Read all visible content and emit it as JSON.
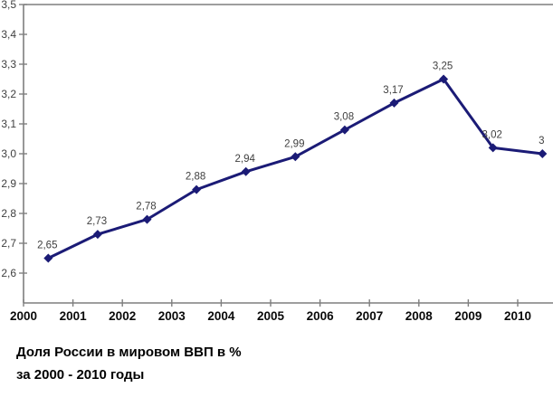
{
  "chart_data": {
    "type": "line",
    "title": "Доля России в мировом ВВП в % за 2000 - 2010 годы",
    "caption_lines": [
      "Доля России в мировом ВВП в %",
      "за 2000 - 2010 годы"
    ],
    "categories": [
      "2000",
      "2001",
      "2002",
      "2003",
      "2004",
      "2005",
      "2006",
      "2007",
      "2008",
      "2009",
      "2010"
    ],
    "values": [
      2.65,
      2.73,
      2.78,
      2.88,
      2.94,
      2.99,
      3.08,
      3.17,
      3.25,
      3.02,
      3.0
    ],
    "point_labels": [
      "2,65",
      "2,73",
      "2,78",
      "2,88",
      "2,94",
      "2,99",
      "3,08",
      "3,17",
      "3,25",
      "3,02",
      "3"
    ],
    "y_ticks": [
      2.6,
      2.7,
      2.8,
      2.9,
      3.0,
      3.1,
      3.2,
      3.3,
      3.4,
      3.5
    ],
    "y_tick_labels": [
      "2,6",
      "2,7",
      "2,8",
      "2,9",
      "3,0",
      "3,1",
      "3,2",
      "3,3",
      "3,4",
      "3,5"
    ],
    "ylim": [
      2.5,
      3.5
    ],
    "xlabel": "",
    "ylabel": "",
    "grid": false,
    "legend": false,
    "marker": "diamond",
    "colors": {
      "line": "#1b1b76",
      "axis": "#7f7f7f",
      "tick_label": "#3f3f3f",
      "point_label": "#3f3f3f",
      "x_label": "#0a0a0a",
      "background": "#ffffff"
    }
  }
}
